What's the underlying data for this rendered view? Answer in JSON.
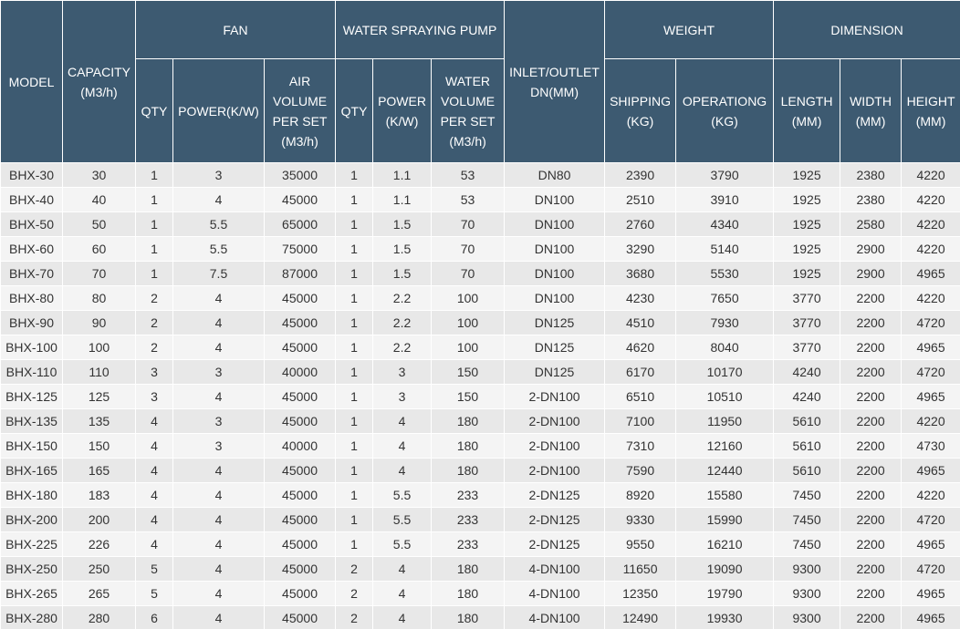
{
  "header": {
    "top": [
      "MODEL",
      "CAPACITY (M3/h)",
      "FAN",
      "WATER SPRAYING PUMP",
      "INLET/OUTLET DN(MM)",
      "WEIGHT",
      "DIMENSION"
    ],
    "sub": [
      "QTY",
      "POWER(K/W)",
      "AIR VOLUME PER SET (M3/h)",
      "QTY",
      "POWER (K/W)",
      "WATER VOLUME PER SET (M3/h)",
      "SHIPPING (KG)",
      "OPERATIONG (KG)",
      "LENGTH (MM)",
      "WIDTH (MM)",
      "HEIGHT (MM)"
    ]
  },
  "rows": [
    [
      "BHX-30",
      30,
      1,
      3,
      35000,
      1,
      1.1,
      53,
      "DN80",
      2390,
      3790,
      1925,
      2380,
      4220
    ],
    [
      "BHX-40",
      40,
      1,
      4,
      45000,
      1,
      1.1,
      53,
      "DN100",
      2510,
      3910,
      1925,
      2380,
      4220
    ],
    [
      "BHX-50",
      50,
      1,
      5.5,
      65000,
      1,
      1.5,
      70,
      "DN100",
      2760,
      4340,
      1925,
      2580,
      4220
    ],
    [
      "BHX-60",
      60,
      1,
      5.5,
      75000,
      1,
      1.5,
      70,
      "DN100",
      3290,
      5140,
      1925,
      2900,
      4220
    ],
    [
      "BHX-70",
      70,
      1,
      7.5,
      87000,
      1,
      1.5,
      70,
      "DN100",
      3680,
      5530,
      1925,
      2900,
      4965
    ],
    [
      "BHX-80",
      80,
      2,
      4,
      45000,
      1,
      2.2,
      100,
      "DN100",
      4230,
      7650,
      3770,
      2200,
      4220
    ],
    [
      "BHX-90",
      90,
      2,
      4,
      45000,
      1,
      2.2,
      100,
      "DN125",
      4510,
      7930,
      3770,
      2200,
      4720
    ],
    [
      "BHX-100",
      100,
      2,
      4,
      45000,
      1,
      2.2,
      100,
      "DN125",
      4620,
      8040,
      3770,
      2200,
      4965
    ],
    [
      "BHX-110",
      110,
      3,
      3,
      40000,
      1,
      3,
      150,
      "DN125",
      6170,
      10170,
      4240,
      2200,
      4720
    ],
    [
      "BHX-125",
      125,
      3,
      4,
      45000,
      1,
      3,
      150,
      "2-DN100",
      6510,
      10510,
      4240,
      2200,
      4965
    ],
    [
      "BHX-135",
      135,
      4,
      3,
      45000,
      1,
      4,
      180,
      "2-DN100",
      7100,
      11950,
      5610,
      2200,
      4220
    ],
    [
      "BHX-150",
      150,
      4,
      3,
      40000,
      1,
      4,
      180,
      "2-DN100",
      7310,
      12160,
      5610,
      2200,
      4730
    ],
    [
      "BHX-165",
      165,
      4,
      4,
      45000,
      1,
      4,
      180,
      "2-DN100",
      7590,
      12440,
      5610,
      2200,
      4965
    ],
    [
      "BHX-180",
      183,
      4,
      4,
      45000,
      1,
      5.5,
      233,
      "2-DN125",
      8920,
      15580,
      7450,
      2200,
      4220
    ],
    [
      "BHX-200",
      200,
      4,
      4,
      45000,
      1,
      5.5,
      233,
      "2-DN125",
      9330,
      15990,
      7450,
      2200,
      4720
    ],
    [
      "BHX-225",
      226,
      4,
      4,
      45000,
      1,
      5.5,
      233,
      "2-DN125",
      9550,
      16210,
      7450,
      2200,
      4965
    ],
    [
      "BHX-250",
      250,
      5,
      4,
      45000,
      2,
      4,
      180,
      "4-DN100",
      11650,
      19090,
      9300,
      2200,
      4720
    ],
    [
      "BHX-265",
      265,
      5,
      4,
      45000,
      2,
      4,
      180,
      "4-DN100",
      12350,
      19790,
      9300,
      2200,
      4965
    ],
    [
      "BHX-280",
      280,
      6,
      4,
      45000,
      2,
      4,
      180,
      "4-DN100",
      12490,
      19930,
      9300,
      2200,
      4965
    ]
  ]
}
